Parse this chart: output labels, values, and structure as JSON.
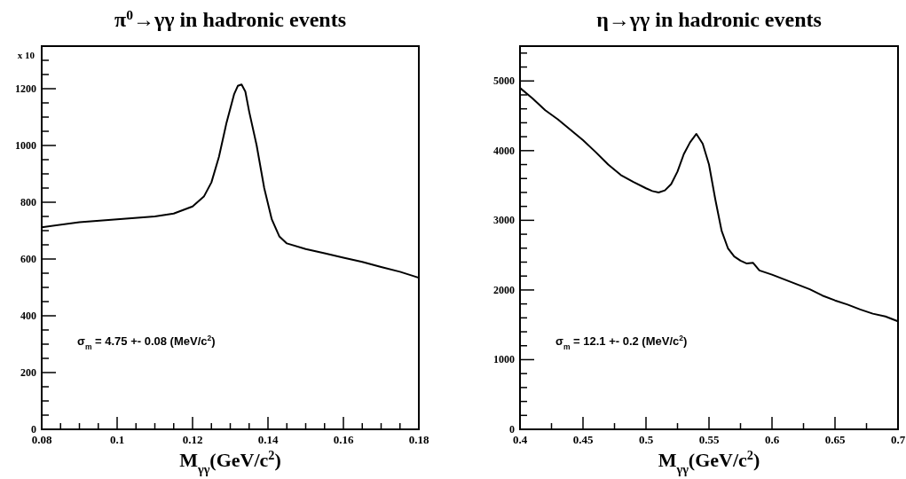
{
  "chart_data": [
    {
      "type": "line",
      "title": "π$^{0}$→γγ in hadronic events",
      "xlabel": "M$_{γγ}$(GeV/c$^{2}$)",
      "ylabel": "x 10",
      "annotations": [
        "σ$_{m}$ = 4.75 +- 0.08 (MeV/c$^{2}$)"
      ],
      "xlim": [
        0.08,
        0.18
      ],
      "ylim": [
        0,
        1350
      ],
      "xticks": [
        0.08,
        {
          "value": 0.085,
          "label": null
        },
        {
          "value": 0.09,
          "label": null
        },
        {
          "value": 0.095,
          "label": null
        },
        0.1,
        {
          "value": 0.105,
          "label": null
        },
        {
          "value": 0.11,
          "label": null
        },
        {
          "value": 0.115,
          "label": null
        },
        0.12,
        {
          "value": 0.125,
          "label": null
        },
        {
          "value": 0.13,
          "label": null
        },
        {
          "value": 0.135,
          "label": null
        },
        0.14,
        {
          "value": 0.145,
          "label": null
        },
        {
          "value": 0.15,
          "label": null
        },
        {
          "value": 0.155,
          "label": null
        },
        0.16,
        {
          "value": 0.165,
          "label": null
        },
        {
          "value": 0.17,
          "label": null
        },
        {
          "value": 0.175,
          "label": null
        },
        0.18
      ],
      "yticks": [
        0,
        {
          "value": 50,
          "label": null
        },
        {
          "value": 100,
          "label": null
        },
        {
          "value": 150,
          "label": null
        },
        200,
        {
          "value": 250,
          "label": null
        },
        {
          "value": 300,
          "label": null
        },
        {
          "value": 350,
          "label": null
        },
        400,
        {
          "value": 450,
          "label": null
        },
        {
          "value": 500,
          "label": null
        },
        {
          "value": 550,
          "label": null
        },
        600,
        {
          "value": 650,
          "label": null
        },
        {
          "value": 700,
          "label": null
        },
        {
          "value": 750,
          "label": null
        },
        800,
        {
          "value": 850,
          "label": null
        },
        {
          "value": 900,
          "label": null
        },
        {
          "value": 950,
          "label": null
        },
        1000,
        {
          "value": 1050,
          "label": null
        },
        {
          "value": 1100,
          "label": null
        },
        {
          "value": 1150,
          "label": null
        },
        1200,
        {
          "value": 1250,
          "label": null
        },
        {
          "value": 1300,
          "label": null
        }
      ],
      "series": [
        {
          "color": "#000000",
          "x": [
            0.08,
            0.09,
            0.1,
            0.11,
            0.115,
            0.12,
            0.123,
            0.125,
            0.127,
            0.129,
            0.131,
            0.132,
            0.133,
            0.134,
            0.135,
            0.137,
            0.139,
            0.141,
            0.143,
            0.145,
            0.15,
            0.155,
            0.16,
            0.165,
            0.17,
            0.175,
            0.18
          ],
          "values": [
            712,
            730,
            740,
            750,
            760,
            785,
            820,
            870,
            960,
            1080,
            1180,
            1210,
            1215,
            1190,
            1120,
            1000,
            850,
            740,
            680,
            655,
            635,
            620,
            605,
            590,
            572,
            555,
            534
          ]
        }
      ]
    },
    {
      "type": "line",
      "title": "η→γγ in hadronic events",
      "xlabel": "M$_{γγ}$(GeV/c$^{2}$)",
      "annotations": [
        "σ$_{m}$ = 12.1  +- 0.2 (MeV/c$^{2}$)"
      ],
      "xlim": [
        0.4,
        0.7
      ],
      "ylim": [
        0,
        5500
      ],
      "xticks": [
        0.4,
        {
          "value": 0.425,
          "label": null
        },
        0.45,
        {
          "value": 0.475,
          "label": null
        },
        0.5,
        {
          "value": 0.525,
          "label": null
        },
        0.55,
        {
          "value": 0.575,
          "label": null
        },
        0.6,
        {
          "value": 0.625,
          "label": null
        },
        0.65,
        {
          "value": 0.675,
          "label": null
        },
        0.7
      ],
      "yticks": [
        0,
        {
          "value": 200,
          "label": null
        },
        {
          "value": 400,
          "label": null
        },
        {
          "value": 600,
          "label": null
        },
        {
          "value": 800,
          "label": null
        },
        1000,
        {
          "value": 1200,
          "label": null
        },
        {
          "value": 1400,
          "label": null
        },
        {
          "value": 1600,
          "label": null
        },
        {
          "value": 1800,
          "label": null
        },
        2000,
        {
          "value": 2200,
          "label": null
        },
        {
          "value": 2400,
          "label": null
        },
        {
          "value": 2600,
          "label": null
        },
        {
          "value": 2800,
          "label": null
        },
        3000,
        {
          "value": 3200,
          "label": null
        },
        {
          "value": 3400,
          "label": null
        },
        {
          "value": 3600,
          "label": null
        },
        {
          "value": 3800,
          "label": null
        },
        4000,
        {
          "value": 4200,
          "label": null
        },
        {
          "value": 4400,
          "label": null
        },
        {
          "value": 4600,
          "label": null
        },
        {
          "value": 4800,
          "label": null
        },
        5000,
        {
          "value": 5200,
          "label": null
        },
        {
          "value": 5400,
          "label": null
        }
      ],
      "series": [
        {
          "color": "#000000",
          "x": [
            0.4,
            0.41,
            0.42,
            0.43,
            0.44,
            0.45,
            0.46,
            0.47,
            0.48,
            0.49,
            0.5,
            0.505,
            0.51,
            0.515,
            0.52,
            0.525,
            0.53,
            0.535,
            0.54,
            0.545,
            0.55,
            0.555,
            0.56,
            0.565,
            0.57,
            0.575,
            0.58,
            0.585,
            0.59,
            0.6,
            0.61,
            0.62,
            0.63,
            0.64,
            0.65,
            0.66,
            0.67,
            0.68,
            0.69,
            0.7
          ],
          "values": [
            4900,
            4750,
            4580,
            4450,
            4300,
            4150,
            3980,
            3800,
            3650,
            3550,
            3460,
            3420,
            3400,
            3430,
            3520,
            3700,
            3950,
            4120,
            4240,
            4100,
            3800,
            3300,
            2850,
            2600,
            2480,
            2420,
            2380,
            2390,
            2280,
            2220,
            2150,
            2080,
            2010,
            1920,
            1850,
            1790,
            1720,
            1660,
            1620,
            1550
          ]
        }
      ]
    }
  ]
}
